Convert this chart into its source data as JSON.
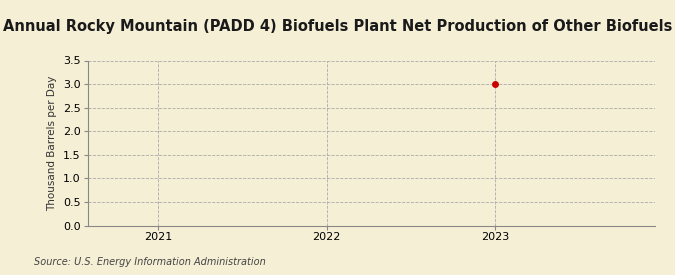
{
  "title": "Annual Rocky Mountain (PADD 4) Biofuels Plant Net Production of Other Biofuels",
  "ylabel": "Thousand Barrels per Day",
  "source": "Source: U.S. Energy Information Administration",
  "background_color": "#f5efd5",
  "plot_bg_color": "#f5efd5",
  "data_x": [
    2023
  ],
  "data_y": [
    3.0
  ],
  "point_color": "#cc0000",
  "point_size": 5,
  "xlim": [
    2020.58,
    2023.95
  ],
  "ylim": [
    0.0,
    3.5
  ],
  "xticks": [
    2021,
    2022,
    2023
  ],
  "yticks": [
    0.0,
    0.5,
    1.0,
    1.5,
    2.0,
    2.5,
    3.0,
    3.5
  ],
  "grid_color": "#aaaaaa",
  "grid_linestyle": "--",
  "grid_linewidth": 0.6,
  "title_fontsize": 10.5,
  "axis_label_fontsize": 7.5,
  "tick_fontsize": 8,
  "source_fontsize": 7
}
